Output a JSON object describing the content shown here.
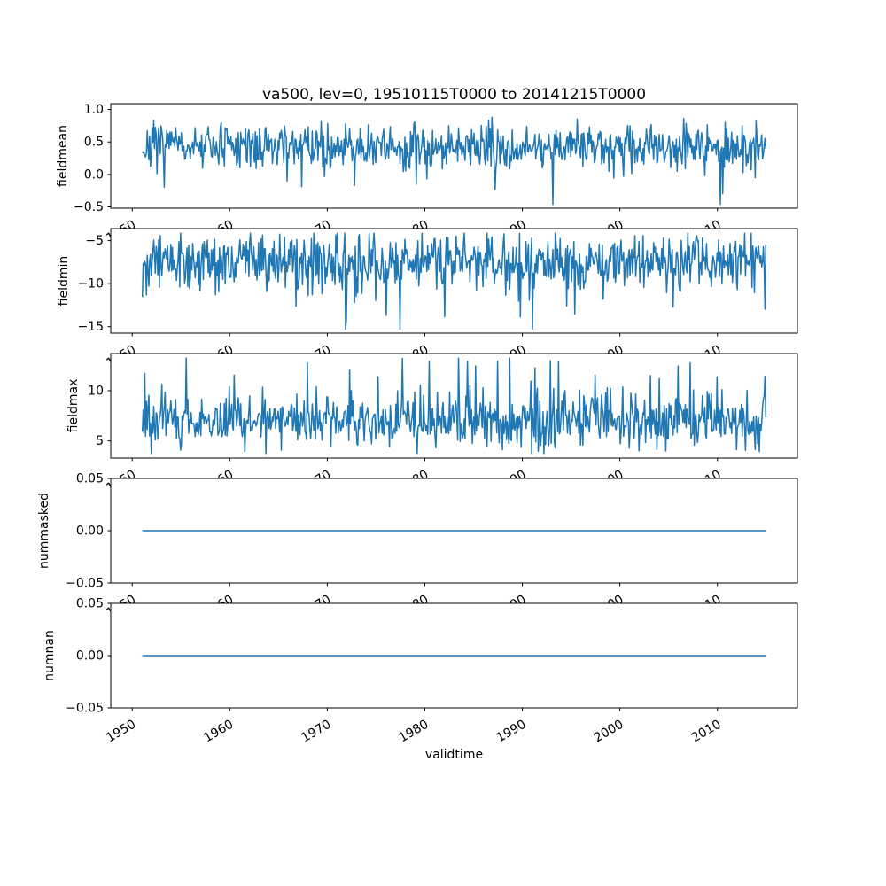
{
  "figure": {
    "background_color": "#ffffff",
    "line_color": "#1f77b4",
    "spine_color": "#000000",
    "text_color": "#000000"
  },
  "chart_data": {
    "type": "line",
    "title": "va500, lev=0, 19510115T0000 to 20141215T0000",
    "xlabel": "validtime",
    "layout_hint": "5 vertically stacked subplots sharing the same x-range; x tick labels rotated 30deg under every subplot; grid off; no legend",
    "x_axis": {
      "label": "validtime",
      "tick_values": [
        1950,
        1960,
        1970,
        1980,
        1990,
        2000,
        2010
      ],
      "tick_labels": [
        "1950",
        "1960",
        "1970",
        "1980",
        "1990",
        "2000",
        "2010"
      ],
      "lim": [
        1947.8,
        2018.2
      ],
      "tick_rotation_deg": 30,
      "data_start": "1951-01-15",
      "data_end": "2014-12-15",
      "data_start_year": 1951.04,
      "data_end_year": 2014.96,
      "n_points": 768,
      "cadence": "monthly"
    },
    "subplots": [
      {
        "ylabel": "fieldmean",
        "ytick_values": [
          1.0,
          0.5,
          0.0,
          -0.5
        ],
        "ytick_labels": [
          "1.0",
          "0.5",
          "0.0",
          "−0.5"
        ],
        "ylim": [
          -0.52,
          1.09
        ],
        "series": {
          "kind": "noise",
          "approx_mean": 0.43,
          "approx_std": 0.17,
          "observed_min": -0.46,
          "observed_max": 1.03,
          "spike_prob": 0.025,
          "spike_amp": -0.55,
          "clip_min": -0.46,
          "clip_max": 1.03,
          "seed": 7
        }
      },
      {
        "ylabel": "fieldmin",
        "ytick_values": [
          -5,
          -10,
          -15
        ],
        "ytick_labels": [
          "−5",
          "−10",
          "−15"
        ],
        "ylim": [
          -15.75,
          -3.6
        ],
        "series": {
          "kind": "noise",
          "approx_mean": -7.3,
          "approx_std": 1.55,
          "observed_min": -15.3,
          "observed_max": -4.15,
          "spike_prob": 0.05,
          "spike_amp": -4.2,
          "clip_min": -15.3,
          "clip_max": -4.15,
          "seed": 13
        }
      },
      {
        "ylabel": "fieldmax",
        "ytick_values": [
          10,
          5
        ],
        "ytick_labels": [
          "10",
          "5"
        ],
        "ylim": [
          3.3,
          13.7
        ],
        "series": {
          "kind": "noise",
          "approx_mean": 6.9,
          "approx_std": 1.25,
          "observed_min": 3.75,
          "observed_max": 13.25,
          "spike_prob": 0.07,
          "spike_amp": 4.2,
          "clip_min": 3.75,
          "clip_max": 13.25,
          "seed": 21
        }
      },
      {
        "ylabel": "nummasked",
        "ytick_values": [
          0.05,
          0.0,
          -0.05
        ],
        "ytick_labels": [
          "0.05",
          "0.00",
          "−0.05"
        ],
        "ylim": [
          -0.05,
          0.05
        ],
        "series": {
          "kind": "constant",
          "value": 0
        }
      },
      {
        "ylabel": "numnan",
        "ytick_values": [
          0.05,
          0.0,
          -0.05
        ],
        "ytick_labels": [
          "0.05",
          "0.00",
          "−0.05"
        ],
        "ylim": [
          -0.05,
          0.05
        ],
        "series": {
          "kind": "constant",
          "value": 0
        }
      }
    ]
  }
}
